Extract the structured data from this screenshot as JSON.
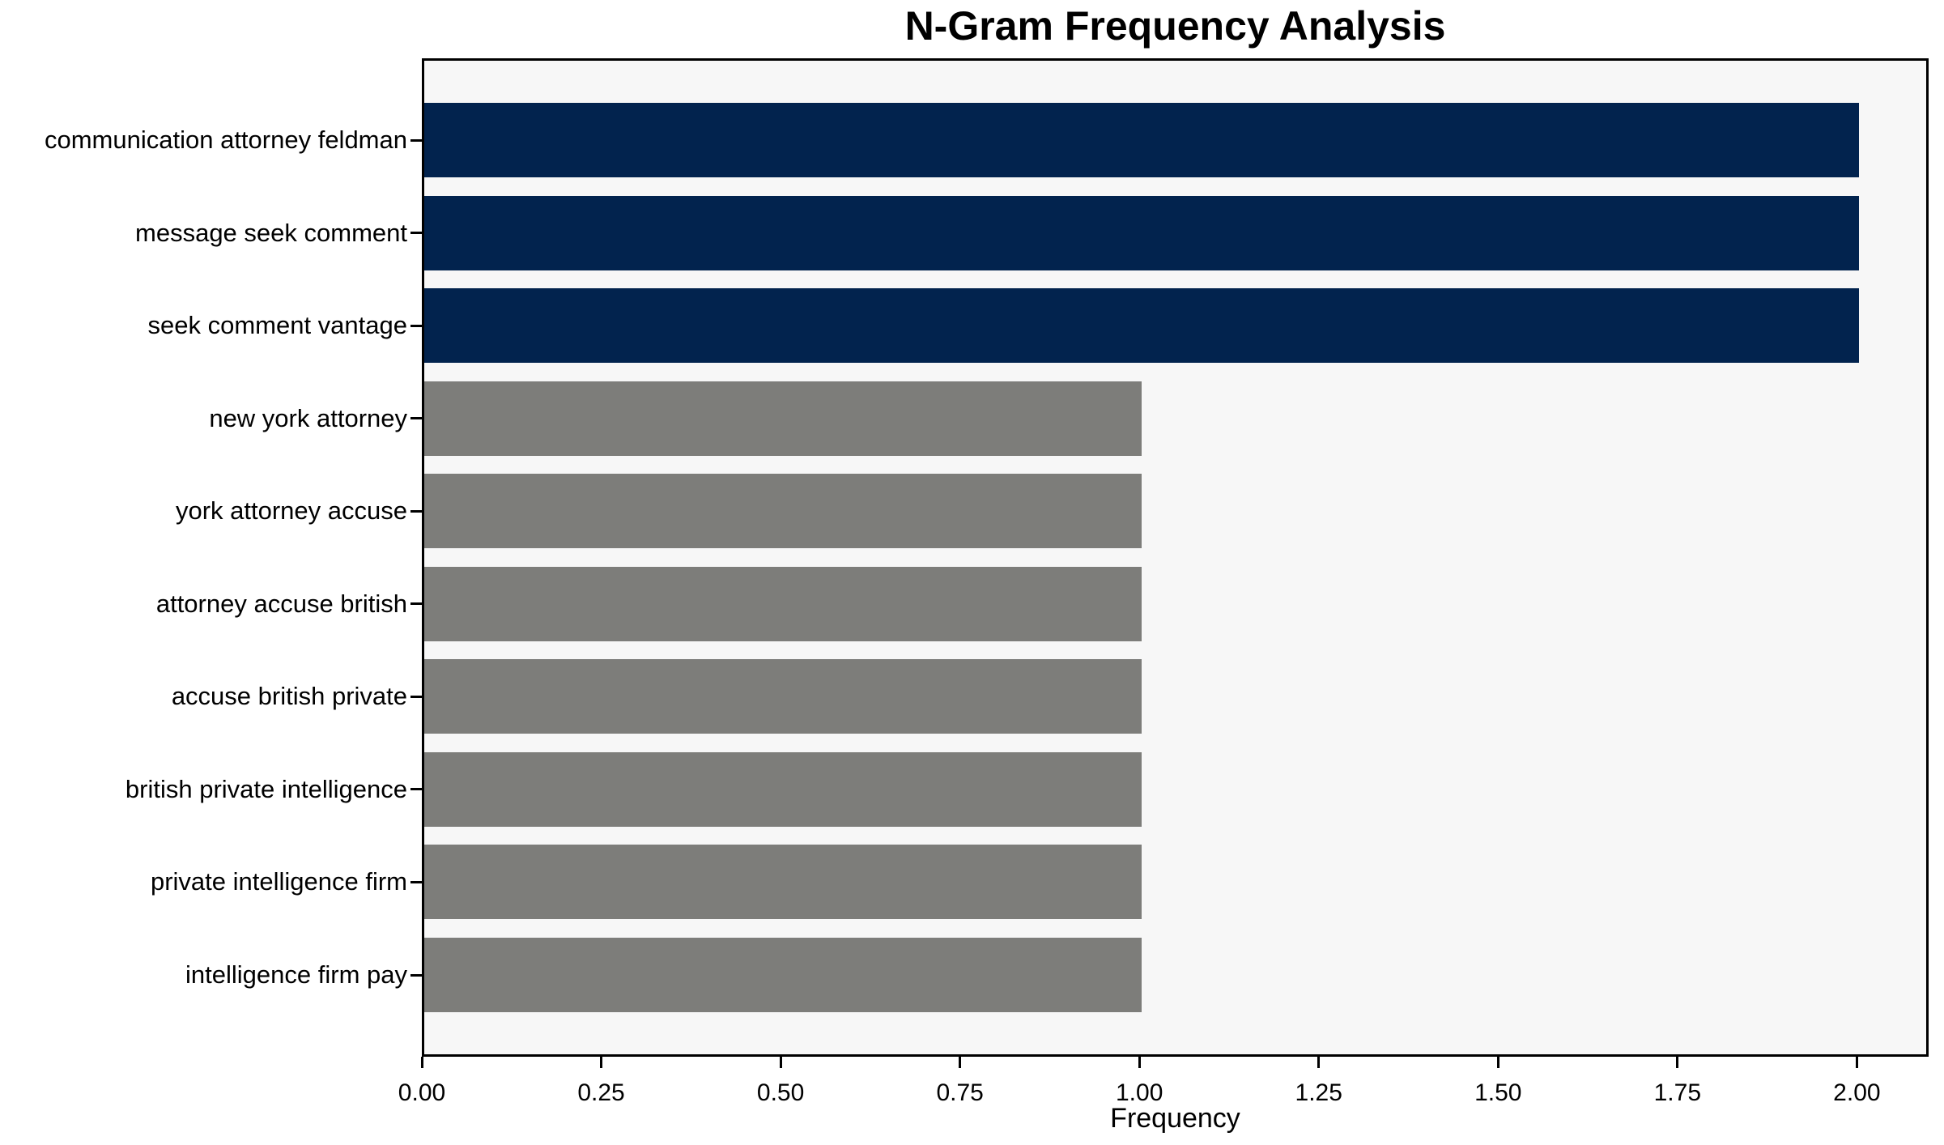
{
  "chart_data": {
    "type": "bar",
    "orientation": "horizontal",
    "title": "N-Gram Frequency Analysis",
    "xlabel": "Frequency",
    "ylabel": "",
    "categories": [
      "communication attorney feldman",
      "message seek comment",
      "seek comment vantage",
      "new york attorney",
      "york attorney accuse",
      "attorney accuse british",
      "accuse british private",
      "british private intelligence",
      "private intelligence firm",
      "intelligence firm pay"
    ],
    "values": [
      2,
      2,
      2,
      1,
      1,
      1,
      1,
      1,
      1,
      1
    ],
    "bar_colors": [
      "#02234e",
      "#02234e",
      "#02234e",
      "#7d7d7a",
      "#7d7d7a",
      "#7d7d7a",
      "#7d7d7a",
      "#7d7d7a",
      "#7d7d7a",
      "#7d7d7a"
    ],
    "xlim": [
      0,
      2.1
    ],
    "xticks": [
      0,
      0.25,
      0.5,
      0.75,
      1.0,
      1.25,
      1.5,
      1.75,
      2.0
    ],
    "xtick_labels": [
      "0.00",
      "0.25",
      "0.50",
      "0.75",
      "1.00",
      "1.25",
      "1.50",
      "1.75",
      "2.00"
    ],
    "grid": false,
    "legend": null,
    "bar_height_fraction": 0.8,
    "colors": {
      "highlight": "#02234e",
      "default": "#7d7d7a",
      "plot_background": "#f7f7f7",
      "figure_background": "#ffffff",
      "spine": "#000000",
      "text": "#000000"
    }
  }
}
